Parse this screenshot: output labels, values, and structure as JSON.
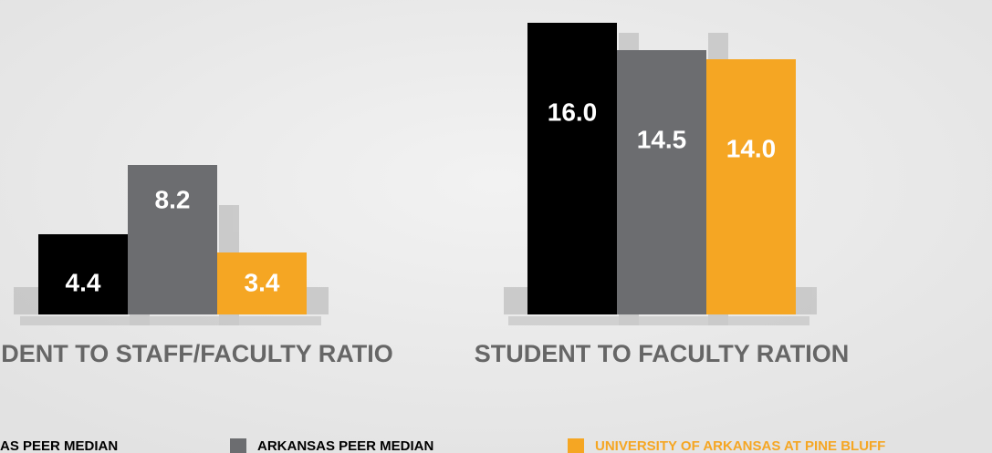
{
  "chart_data": {
    "type": "bar",
    "categories": [
      "STUDENT TO STAFF/FACULTY RATIO",
      "STUDENT TO FACULTY RATION"
    ],
    "series": [
      {
        "name": "AS PEER MEDIAN",
        "color": "#000000",
        "values": [
          4.4,
          16.0
        ],
        "value_labels": [
          "4.4",
          "16.0"
        ]
      },
      {
        "name": "ARKANSAS PEER MEDIAN",
        "color": "#6c6d70",
        "values": [
          8.2,
          14.5
        ],
        "value_labels": [
          "8.2",
          "14.5"
        ]
      },
      {
        "name": "UNIVERSITY OF ARKANSAS AT PINE BLUFF",
        "color": "#f5a623",
        "values": [
          3.4,
          14.0
        ],
        "value_labels": [
          "3.4",
          "14.0"
        ]
      }
    ]
  }
}
